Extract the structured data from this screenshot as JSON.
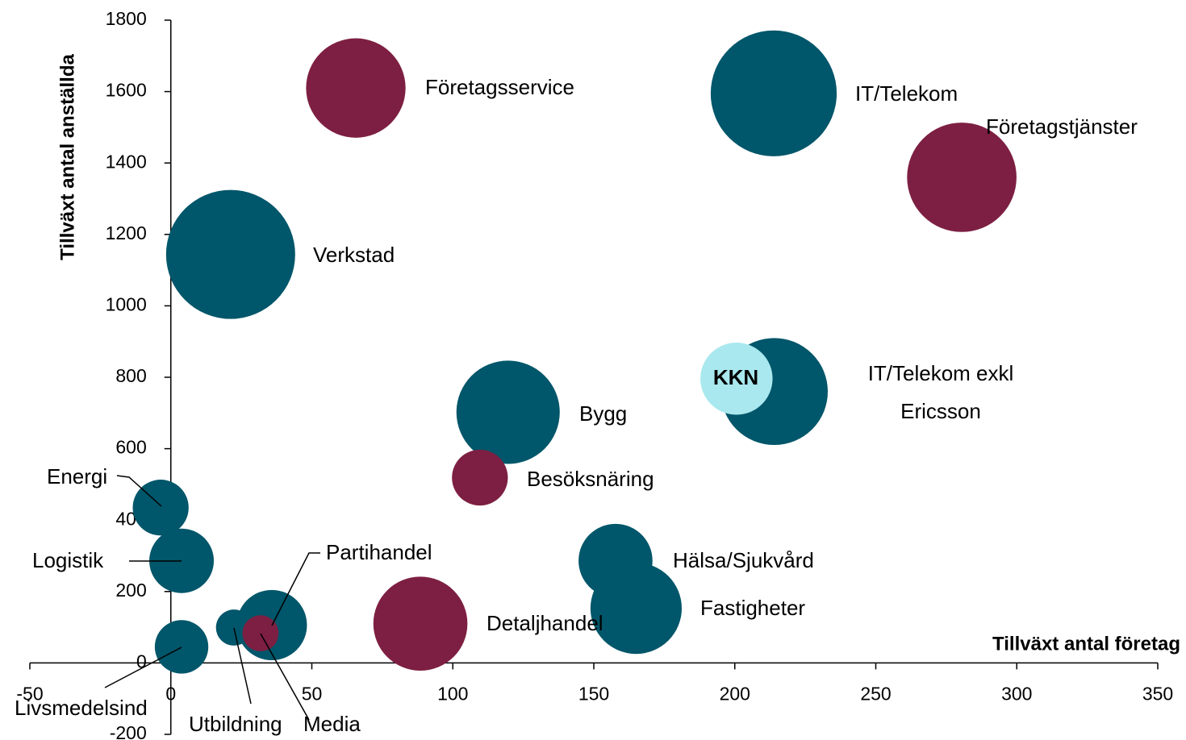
{
  "chart_data": {
    "type": "bubble",
    "x_label": "Tillväxt antal företag",
    "y_label": "Tillväxt antal anställda",
    "labels": [
      [
        "Företagsservice"
      ],
      [
        "IT/Telekom"
      ],
      [
        "Företagstjänster"
      ],
      [
        "Verkstad"
      ],
      [
        "IT/Telekom exkl",
        "Ericsson"
      ],
      [
        "KKN"
      ],
      [
        "Bygg"
      ],
      [
        "Besöksnäring"
      ],
      [
        "Energi"
      ],
      [
        "Logistik"
      ],
      [
        "Hälsa/Sjukvård"
      ],
      [
        "Fastigheter"
      ],
      [
        "Detaljhandel"
      ],
      [
        "Partihandel"
      ],
      [
        "Utbildning"
      ],
      [
        "Media"
      ],
      [
        "Livsmedelsind"
      ]
    ],
    "x": [
      65.6,
      213.8,
      280.5,
      21.2,
      214,
      200.6,
      119.6,
      109.6,
      -3.6,
      3.8,
      157.7,
      165,
      88.5,
      35.8,
      22.4,
      31.8,
      3.8
    ],
    "values": [
      1610,
      1595,
      1360,
      1144,
      760,
      796,
      702,
      519,
      435,
      286,
      286,
      153,
      110,
      106,
      99,
      83,
      45
    ],
    "sizes": [
      38,
      61,
      46,
      64,
      44,
      20,
      41,
      12,
      12,
      16,
      21,
      32,
      34,
      19,
      5,
      5,
      11
    ],
    "colors": [
      "#7d1f42",
      "#00566a",
      "#7d1f42",
      "#00566a",
      "#00566a",
      "#a8e8ee",
      "#00566a",
      "#7d1f42",
      "#00566a",
      "#00566a",
      "#00566a",
      "#00566a",
      "#7d1f42",
      "#00566a",
      "#00566a",
      "#7d1f42",
      "#00566a"
    ],
    "xlim": [
      -50,
      350
    ],
    "xticks": [
      -50,
      0,
      50,
      100,
      150,
      200,
      250,
      300,
      350
    ],
    "ylim": [
      -200,
      1800
    ],
    "yticks": [
      -200,
      0,
      200,
      400,
      600,
      800,
      1000,
      1200,
      1400,
      1600,
      1800
    ]
  }
}
